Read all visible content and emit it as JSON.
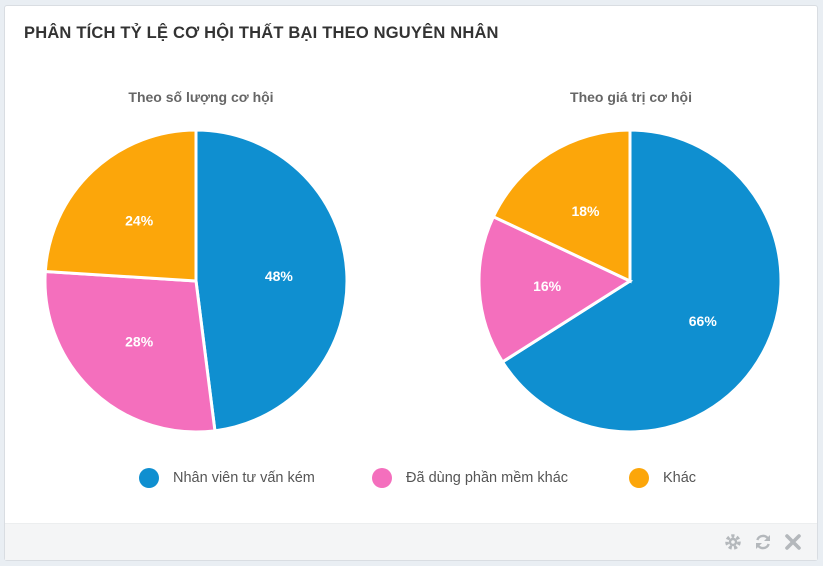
{
  "panel": {
    "title": "PHÂN TÍCH TỶ LỆ CƠ HỘI THẤT BẠI THEO NGUYÊN NHÂN"
  },
  "colors": {
    "blue": "#0f8fd0",
    "pink": "#f46fbd",
    "orange": "#fca60a"
  },
  "chart_data": [
    {
      "type": "pie",
      "title": "Theo số lượng cơ hội",
      "categories": [
        "Nhân viên tư vấn kém",
        "Đã dùng phần mềm khác",
        "Khác"
      ],
      "values": [
        48,
        28,
        24
      ],
      "labels": [
        "48%",
        "28%",
        "24%"
      ],
      "legend": "bottom"
    },
    {
      "type": "pie",
      "title": "Theo giá trị cơ hội",
      "categories": [
        "Nhân viên tư vấn kém",
        "Đã dùng phần mềm khác",
        "Khác"
      ],
      "values": [
        66,
        16,
        18
      ],
      "labels": [
        "66%",
        "16%",
        "18%"
      ],
      "legend": "bottom"
    }
  ],
  "legend": [
    {
      "label": "Nhân viên tư vấn kém",
      "color": "#0f8fd0"
    },
    {
      "label": "Đã dùng phần mềm khác",
      "color": "#f46fbd"
    },
    {
      "label": "Khác",
      "color": "#fca60a"
    }
  ],
  "footer": {
    "icons": [
      "gear-icon",
      "refresh-icon",
      "close-icon"
    ]
  }
}
